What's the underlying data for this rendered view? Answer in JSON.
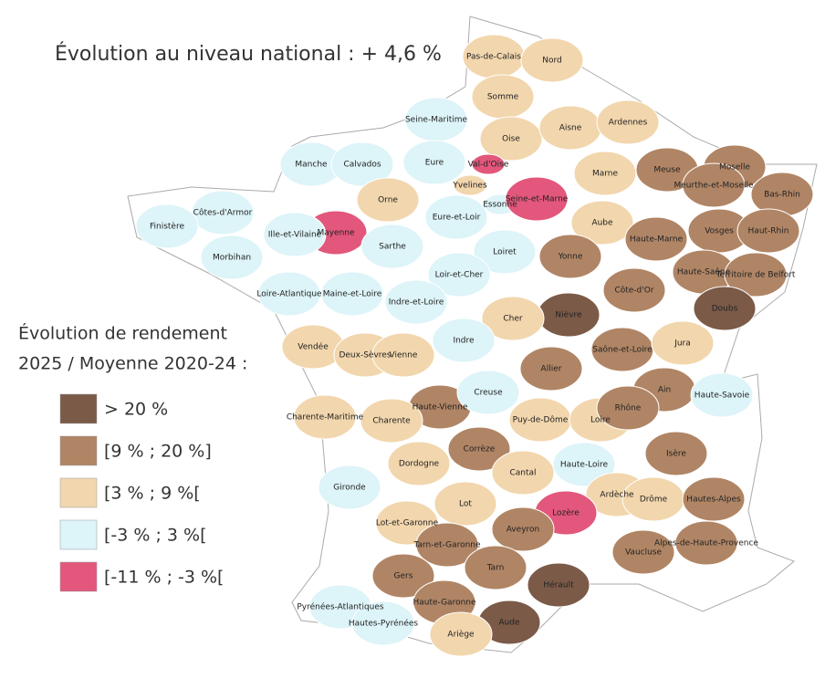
{
  "title": "Évolution au niveau national : + 4,6 %",
  "legend": {
    "title_lines": [
      "Évolution de rendement",
      "2025 / Moyenne 2020-24 :"
    ],
    "items": [
      {
        "label": "> 20 %",
        "color": "#7b5a48"
      },
      {
        "label": "[9 % ; 20 %]",
        "color": "#b08565"
      },
      {
        "label": "[3 % ; 9 %[",
        "color": "#f2d6ad"
      },
      {
        "label": "[-3 % ; 3 %[",
        "color": "#ddf4f8"
      },
      {
        "label": "[-11 % ; -3 %[",
        "color": "#e2577b"
      }
    ]
  },
  "departments": [
    {
      "name": "Pas-de-Calais",
      "legend_index": 2
    },
    {
      "name": "Nord",
      "legend_index": 2
    },
    {
      "name": "Somme",
      "legend_index": 2
    },
    {
      "name": "Oise",
      "legend_index": 2
    },
    {
      "name": "Aisne",
      "legend_index": 2
    },
    {
      "name": "Ardennes",
      "legend_index": 2
    },
    {
      "name": "Seine-Maritime",
      "legend_index": 3
    },
    {
      "name": "Manche",
      "legend_index": 3
    },
    {
      "name": "Calvados",
      "legend_index": 3
    },
    {
      "name": "Eure",
      "legend_index": 3
    },
    {
      "name": "Val-d'Oise",
      "legend_index": 4
    },
    {
      "name": "Yvelines",
      "legend_index": 2
    },
    {
      "name": "Essonne",
      "legend_index": 3
    },
    {
      "name": "Seine-et-Marne",
      "legend_index": 4
    },
    {
      "name": "Marne",
      "legend_index": 2
    },
    {
      "name": "Meuse",
      "legend_index": 1
    },
    {
      "name": "Moselle",
      "legend_index": 1
    },
    {
      "name": "Meurthe-et-Moselle",
      "legend_index": 1
    },
    {
      "name": "Bas-Rhin",
      "legend_index": 1
    },
    {
      "name": "Orne",
      "legend_index": 2
    },
    {
      "name": "Côtes-d'Armor",
      "legend_index": 3
    },
    {
      "name": "Finistère",
      "legend_index": 3
    },
    {
      "name": "Mayenne",
      "legend_index": 4
    },
    {
      "name": "Ille-et-Vilaine",
      "legend_index": 3
    },
    {
      "name": "Eure-et-Loir",
      "legend_index": 3
    },
    {
      "name": "Aube",
      "legend_index": 2
    },
    {
      "name": "Haute-Marne",
      "legend_index": 1
    },
    {
      "name": "Vosges",
      "legend_index": 1
    },
    {
      "name": "Sarthe",
      "legend_index": 3
    },
    {
      "name": "Loiret",
      "legend_index": 3
    },
    {
      "name": "Yonne",
      "legend_index": 1
    },
    {
      "name": "Haut-Rhin",
      "legend_index": 1
    },
    {
      "name": "Morbihan",
      "legend_index": 3
    },
    {
      "name": "Loir-et-Cher",
      "legend_index": 3
    },
    {
      "name": "Haute-Saône",
      "legend_index": 1
    },
    {
      "name": "Territoire de Belfort",
      "legend_index": 1
    },
    {
      "name": "Loire-Atlantique",
      "legend_index": 3
    },
    {
      "name": "Maine-et-Loire",
      "legend_index": 3
    },
    {
      "name": "Indre-et-Loire",
      "legend_index": 3
    },
    {
      "name": "Côte-d'Or",
      "legend_index": 1
    },
    {
      "name": "Nièvre",
      "legend_index": 0
    },
    {
      "name": "Doubs",
      "legend_index": 0
    },
    {
      "name": "Cher",
      "legend_index": 2
    },
    {
      "name": "Vendée",
      "legend_index": 2
    },
    {
      "name": "Deux-Sèvres",
      "legend_index": 2
    },
    {
      "name": "Vienne",
      "legend_index": 2
    },
    {
      "name": "Indre",
      "legend_index": 3
    },
    {
      "name": "Saône-et-Loire",
      "legend_index": 1
    },
    {
      "name": "Jura",
      "legend_index": 2
    },
    {
      "name": "Allier",
      "legend_index": 1
    },
    {
      "name": "Haute-Vienne",
      "legend_index": 1
    },
    {
      "name": "Creuse",
      "legend_index": 3
    },
    {
      "name": "Ain",
      "legend_index": 1
    },
    {
      "name": "Haute-Savoie",
      "legend_index": 3
    },
    {
      "name": "Charente-Maritime",
      "legend_index": 2
    },
    {
      "name": "Charente",
      "legend_index": 2
    },
    {
      "name": "Puy-de-Dôme",
      "legend_index": 2
    },
    {
      "name": "Loire",
      "legend_index": 2
    },
    {
      "name": "Rhône",
      "legend_index": 1
    },
    {
      "name": "Corrèze",
      "legend_index": 1
    },
    {
      "name": "Isère",
      "legend_index": 1
    },
    {
      "name": "Dordogne",
      "legend_index": 2
    },
    {
      "name": "Haute-Loire",
      "legend_index": 3
    },
    {
      "name": "Cantal",
      "legend_index": 2
    },
    {
      "name": "Gironde",
      "legend_index": 3
    },
    {
      "name": "Lot",
      "legend_index": 2
    },
    {
      "name": "Ardèche",
      "legend_index": 2
    },
    {
      "name": "Drôme",
      "legend_index": 2
    },
    {
      "name": "Hautes-Alpes",
      "legend_index": 1
    },
    {
      "name": "Lozère",
      "legend_index": 4
    },
    {
      "name": "Lot-et-Garonne",
      "legend_index": 2
    },
    {
      "name": "Aveyron",
      "legend_index": 1
    },
    {
      "name": "Tarn-et-Garonne",
      "legend_index": 1
    },
    {
      "name": "Alpes-de-Haute-Provence",
      "legend_index": 1
    },
    {
      "name": "Vaucluse",
      "legend_index": 1
    },
    {
      "name": "Tarn",
      "legend_index": 1
    },
    {
      "name": "Gers",
      "legend_index": 1
    },
    {
      "name": "Hérault",
      "legend_index": 0
    },
    {
      "name": "Haute-Garonne",
      "legend_index": 1
    },
    {
      "name": "Pyrénées-Atlantiques",
      "legend_index": 3
    },
    {
      "name": "Hautes-Pyrénées",
      "legend_index": 3
    },
    {
      "name": "Aude",
      "legend_index": 0
    },
    {
      "name": "Ariège",
      "legend_index": 2
    }
  ]
}
